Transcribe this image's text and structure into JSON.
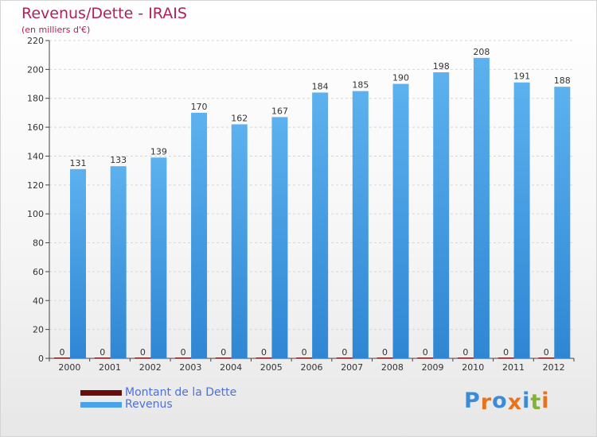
{
  "header": {
    "title": "Revenus/Dette - IRAIS",
    "subtitle": "(en milliers d'€)"
  },
  "brand": {
    "name": "Proxiti",
    "letters": [
      {
        "char": "P",
        "color": "#3d8ad6"
      },
      {
        "char": "r",
        "color": "#e8731f"
      },
      {
        "char": "o",
        "color": "#3d8ad6"
      },
      {
        "char": "x",
        "color": "#e8731f"
      },
      {
        "char": "i",
        "color": "#3d8ad6"
      },
      {
        "char": "t",
        "color": "#82b431"
      },
      {
        "char": "i",
        "color": "#e8731f"
      }
    ]
  },
  "chart_data": {
    "type": "bar",
    "title": "Revenus/Dette - IRAIS",
    "subtitle": "(en milliers d'€)",
    "xlabel": "",
    "ylabel": "",
    "categories": [
      "2000",
      "2001",
      "2002",
      "2003",
      "2004",
      "2005",
      "2006",
      "2007",
      "2008",
      "2009",
      "2010",
      "2011",
      "2012"
    ],
    "ylim": [
      0,
      220
    ],
    "yticks": [
      0,
      20,
      40,
      60,
      80,
      100,
      120,
      140,
      160,
      180,
      200,
      220
    ],
    "grid": true,
    "legend_position": "bottom-left",
    "series": [
      {
        "name": "Montant de la Dette",
        "color": "#6b0c0c",
        "values": [
          0,
          0,
          0,
          0,
          0,
          0,
          0,
          0,
          0,
          0,
          0,
          0,
          0
        ]
      },
      {
        "name": "Revenus",
        "color": "#4aa3e8",
        "values": [
          131,
          133,
          139,
          170,
          162,
          167,
          184,
          185,
          190,
          198,
          208,
          191,
          188
        ]
      }
    ]
  }
}
